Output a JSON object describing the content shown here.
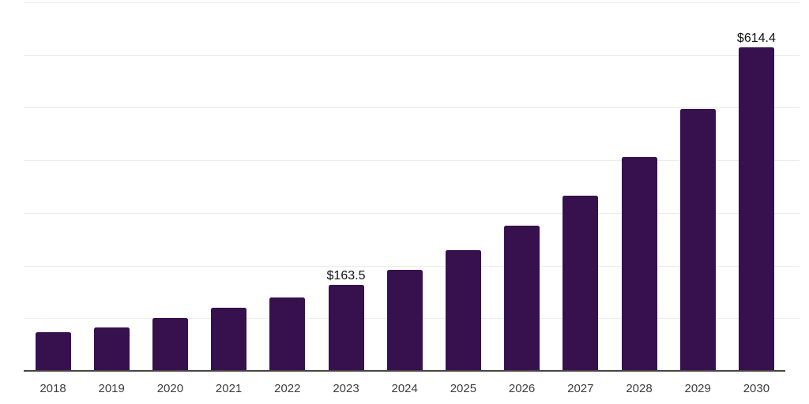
{
  "chart_data": {
    "type": "bar",
    "title": "",
    "xlabel": "",
    "ylabel": "",
    "categories": [
      "2018",
      "2019",
      "2020",
      "2021",
      "2022",
      "2023",
      "2024",
      "2025",
      "2026",
      "2027",
      "2028",
      "2029",
      "2030"
    ],
    "values": [
      74.0,
      82.5,
      100.5,
      120.0,
      139.5,
      163.5,
      192.0,
      229.5,
      276.0,
      333.0,
      406.5,
      498.0,
      614.4
    ],
    "data_labels": [
      "",
      "",
      "",
      "",
      "",
      "$163.5",
      "",
      "",
      "",
      "",
      "",
      "",
      "$614.4"
    ],
    "ylim": [
      0,
      700
    ],
    "gridline_interval": 100,
    "grid": "horizontal",
    "y_tick_labels_shown": false,
    "legend_position": "none",
    "colors": {
      "bar": "#36114E",
      "gridline": "#ECECEC",
      "axis_line": "#444444",
      "category_label": "#3D3D3D",
      "value_label": "#111111",
      "background": "#FFFFFF"
    }
  }
}
